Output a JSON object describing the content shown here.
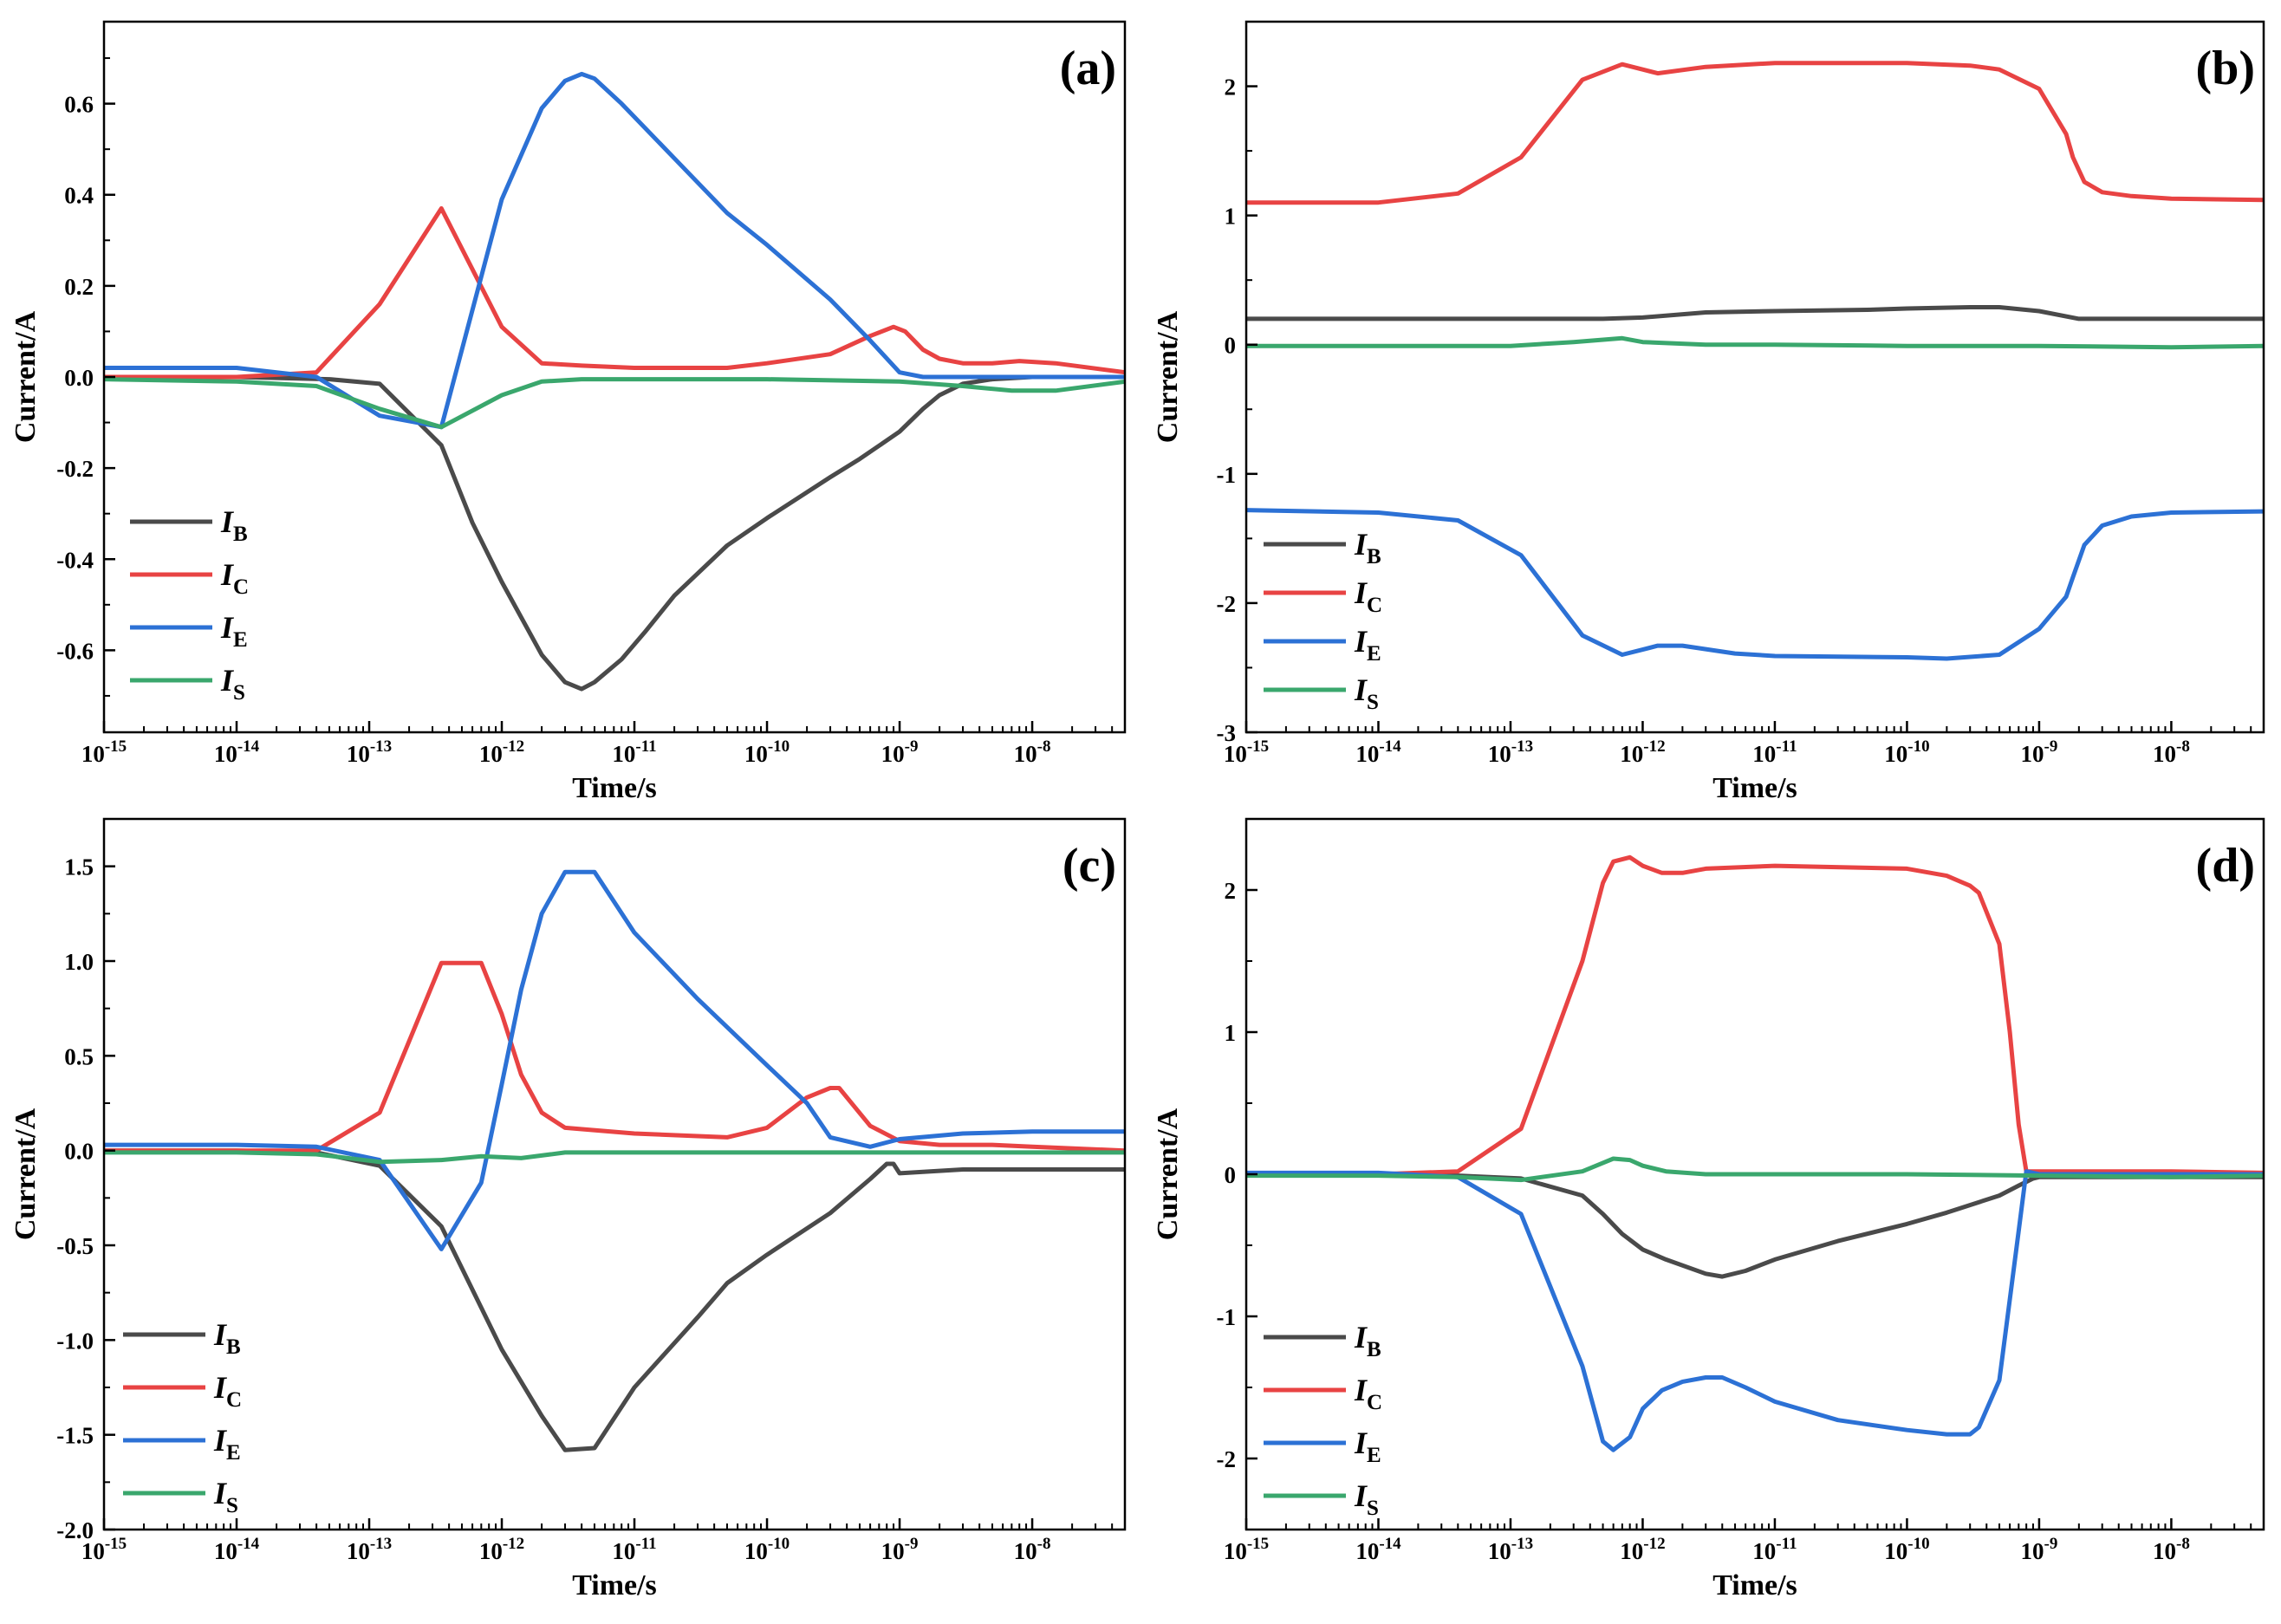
{
  "chart_data": [
    {
      "type": "line",
      "panel": "(a)",
      "xscale": "log",
      "xlabel": "Time/s",
      "ylabel": "Current/A",
      "xlim": [
        1e-15,
        5e-08
      ],
      "ylim": [
        -0.78,
        0.78
      ],
      "xticks": [
        {
          "base": "10",
          "exp": "-15"
        },
        {
          "base": "10",
          "exp": "-14"
        },
        {
          "base": "10",
          "exp": "-13"
        },
        {
          "base": "10",
          "exp": "-12"
        },
        {
          "base": "10",
          "exp": "-11"
        },
        {
          "base": "10",
          "exp": "-10"
        },
        {
          "base": "10",
          "exp": "-9"
        },
        {
          "base": "10",
          "exp": "-8"
        }
      ],
      "yticks": [
        {
          "value": 0.6,
          "label": "0.6"
        },
        {
          "value": 0.4,
          "label": "0.4"
        },
        {
          "value": 0.2,
          "label": "0.2"
        },
        {
          "value": 0.0,
          "label": "0.0"
        },
        {
          "value": -0.2,
          "label": "-0.2"
        },
        {
          "value": -0.4,
          "label": "-0.4"
        },
        {
          "value": -0.6,
          "label": "-0.6"
        }
      ],
      "legend_position": "bottom-left",
      "series": [
        {
          "name": "I",
          "sub": "B",
          "color": "#4a4a4a",
          "x": [
            1e-15,
            1e-14,
            5e-14,
            1.2e-13,
            3.5e-13,
            6e-13,
            1e-12,
            2e-12,
            3e-12,
            4e-12,
            5e-12,
            8e-12,
            1.2e-11,
            2e-11,
            5e-11,
            1e-10,
            3e-10,
            5e-10,
            1e-09,
            1.5e-09,
            2e-09,
            3e-09,
            5e-09,
            1e-08,
            5e-08
          ],
          "y": [
            0.0,
            0.0,
            -0.005,
            -0.015,
            -0.15,
            -0.32,
            -0.45,
            -0.61,
            -0.67,
            -0.685,
            -0.67,
            -0.62,
            -0.56,
            -0.48,
            -0.37,
            -0.31,
            -0.22,
            -0.18,
            -0.12,
            -0.07,
            -0.04,
            -0.015,
            -0.005,
            0.0,
            0.0
          ]
        },
        {
          "name": "I",
          "sub": "C",
          "color": "#e84343",
          "x": [
            1e-15,
            1e-14,
            4e-14,
            1.2e-13,
            3.5e-13,
            1e-12,
            2e-12,
            4e-12,
            1e-11,
            2e-11,
            5e-11,
            1e-10,
            3e-10,
            6e-10,
            9e-10,
            1.1e-09,
            1.5e-09,
            2e-09,
            3e-09,
            5e-09,
            8e-09,
            1.5e-08,
            5e-08
          ],
          "y": [
            0.0,
            0.0,
            0.01,
            0.16,
            0.37,
            0.11,
            0.03,
            0.025,
            0.02,
            0.02,
            0.02,
            0.03,
            0.05,
            0.09,
            0.11,
            0.1,
            0.06,
            0.04,
            0.03,
            0.03,
            0.035,
            0.03,
            0.01
          ]
        },
        {
          "name": "I",
          "sub": "E",
          "color": "#2c71d5",
          "x": [
            1e-15,
            1e-14,
            4e-14,
            1.2e-13,
            3.5e-13,
            1e-12,
            2e-12,
            3e-12,
            4e-12,
            5e-12,
            8e-12,
            2e-11,
            5e-11,
            1e-10,
            3e-10,
            6e-10,
            1e-09,
            1.5e-09,
            3e-09,
            1e-08,
            5e-08
          ],
          "y": [
            0.02,
            0.02,
            0.0,
            -0.085,
            -0.11,
            0.39,
            0.59,
            0.65,
            0.665,
            0.655,
            0.6,
            0.48,
            0.36,
            0.29,
            0.17,
            0.08,
            0.01,
            0.0,
            0.0,
            0.0,
            0.0
          ]
        },
        {
          "name": "I",
          "sub": "S",
          "color": "#3aa76d",
          "x": [
            1e-15,
            1e-14,
            4e-14,
            1.2e-13,
            3.5e-13,
            1e-12,
            2e-12,
            4e-12,
            1e-11,
            1e-10,
            1e-09,
            3e-09,
            7e-09,
            1.5e-08,
            5e-08
          ],
          "y": [
            -0.005,
            -0.01,
            -0.02,
            -0.07,
            -0.11,
            -0.04,
            -0.01,
            -0.005,
            -0.005,
            -0.005,
            -0.01,
            -0.02,
            -0.03,
            -0.03,
            -0.01
          ]
        }
      ]
    },
    {
      "type": "line",
      "panel": "(b)",
      "xscale": "log",
      "xlabel": "Time/s",
      "ylabel": "Current/A",
      "xlim": [
        1e-15,
        5e-08
      ],
      "ylim": [
        -3,
        2.5
      ],
      "xticks": [
        {
          "base": "10",
          "exp": "-15"
        },
        {
          "base": "10",
          "exp": "-14"
        },
        {
          "base": "10",
          "exp": "-13"
        },
        {
          "base": "10",
          "exp": "-12"
        },
        {
          "base": "10",
          "exp": "-11"
        },
        {
          "base": "10",
          "exp": "-10"
        },
        {
          "base": "10",
          "exp": "-9"
        },
        {
          "base": "10",
          "exp": "-8"
        }
      ],
      "yticks": [
        {
          "value": 2,
          "label": "2"
        },
        {
          "value": 1,
          "label": "1"
        },
        {
          "value": 0,
          "label": "0"
        },
        {
          "value": -1,
          "label": "-1"
        },
        {
          "value": -2,
          "label": "-2"
        },
        {
          "value": -3,
          "label": "-3"
        }
      ],
      "legend_position": "bottom-left",
      "series": [
        {
          "name": "I",
          "sub": "B",
          "color": "#4a4a4a",
          "x": [
            1e-15,
            1e-14,
            1e-13,
            5e-13,
            1e-12,
            3e-12,
            1e-11,
            5e-11,
            1e-10,
            3e-10,
            5e-10,
            1e-09,
            2e-09,
            1e-08,
            5e-08
          ],
          "y": [
            0.2,
            0.2,
            0.2,
            0.2,
            0.21,
            0.25,
            0.26,
            0.27,
            0.28,
            0.29,
            0.29,
            0.26,
            0.2,
            0.2,
            0.2
          ]
        },
        {
          "name": "I",
          "sub": "C",
          "color": "#e84343",
          "x": [
            1e-15,
            1e-14,
            4e-14,
            1.2e-13,
            3.5e-13,
            7e-13,
            1e-12,
            1.3e-12,
            3e-12,
            1e-11,
            1e-10,
            3e-10,
            5e-10,
            1e-09,
            1.6e-09,
            1.8e-09,
            2.2e-09,
            3e-09,
            5e-09,
            1e-08,
            5e-08
          ],
          "y": [
            1.1,
            1.1,
            1.17,
            1.45,
            2.05,
            2.17,
            2.13,
            2.1,
            2.15,
            2.18,
            2.18,
            2.16,
            2.13,
            1.98,
            1.63,
            1.45,
            1.26,
            1.18,
            1.15,
            1.13,
            1.12
          ]
        },
        {
          "name": "I",
          "sub": "E",
          "color": "#2c71d5",
          "x": [
            1e-15,
            1e-14,
            4e-14,
            1.2e-13,
            3.5e-13,
            7e-13,
            1e-12,
            1.3e-12,
            2e-12,
            5e-12,
            1e-11,
            1e-10,
            2e-10,
            5e-10,
            1e-09,
            1.6e-09,
            1.8e-09,
            2.2e-09,
            3e-09,
            5e-09,
            1e-08,
            5e-08
          ],
          "y": [
            -1.28,
            -1.3,
            -1.36,
            -1.63,
            -2.25,
            -2.4,
            -2.36,
            -2.33,
            -2.33,
            -2.39,
            -2.41,
            -2.42,
            -2.43,
            -2.4,
            -2.2,
            -1.95,
            -1.8,
            -1.55,
            -1.4,
            -1.33,
            -1.3,
            -1.29
          ]
        },
        {
          "name": "I",
          "sub": "S",
          "color": "#3aa76d",
          "x": [
            1e-15,
            1e-13,
            3e-13,
            7e-13,
            1e-12,
            3e-12,
            1e-11,
            1e-10,
            1e-09,
            1e-08,
            5e-08
          ],
          "y": [
            -0.01,
            -0.01,
            0.02,
            0.05,
            0.02,
            0.0,
            0.0,
            -0.01,
            -0.01,
            -0.02,
            -0.01
          ]
        }
      ]
    },
    {
      "type": "line",
      "panel": "(c)",
      "xscale": "log",
      "xlabel": "Time/s",
      "ylabel": "Current/A",
      "xlim": [
        1e-15,
        5e-08
      ],
      "ylim": [
        -2.0,
        1.75
      ],
      "xticks": [
        {
          "base": "10",
          "exp": "-15"
        },
        {
          "base": "10",
          "exp": "-14"
        },
        {
          "base": "10",
          "exp": "-13"
        },
        {
          "base": "10",
          "exp": "-12"
        },
        {
          "base": "10",
          "exp": "-11"
        },
        {
          "base": "10",
          "exp": "-10"
        },
        {
          "base": "10",
          "exp": "-9"
        },
        {
          "base": "10",
          "exp": "-8"
        }
      ],
      "yticks": [
        {
          "value": 1.5,
          "label": "1.5"
        },
        {
          "value": 1.0,
          "label": "1.0"
        },
        {
          "value": 0.5,
          "label": "0.5"
        },
        {
          "value": 0.0,
          "label": "0.0"
        },
        {
          "value": -0.5,
          "label": "-0.5"
        },
        {
          "value": -1.0,
          "label": "-1.0"
        },
        {
          "value": -1.5,
          "label": "-1.5"
        },
        {
          "value": -2.0,
          "label": "-2.0"
        }
      ],
      "legend_position": "bottom-left",
      "series": [
        {
          "name": "I",
          "sub": "B",
          "color": "#4a4a4a",
          "x": [
            1e-15,
            1e-14,
            4e-14,
            1.2e-13,
            3.5e-13,
            1e-12,
            2e-12,
            3e-12,
            5e-12,
            1e-11,
            3e-11,
            5e-11,
            1e-10,
            3e-10,
            6e-10,
            8e-10,
            9e-10,
            1e-09,
            3e-09,
            1e-08,
            5e-08
          ],
          "y": [
            0.0,
            0.0,
            -0.01,
            -0.08,
            -0.4,
            -1.05,
            -1.4,
            -1.58,
            -1.57,
            -1.25,
            -0.88,
            -0.7,
            -0.55,
            -0.33,
            -0.15,
            -0.07,
            -0.07,
            -0.12,
            -0.1,
            -0.1,
            -0.1
          ]
        },
        {
          "name": "I",
          "sub": "C",
          "color": "#e84343",
          "x": [
            1e-15,
            1e-14,
            4e-14,
            1.2e-13,
            3.5e-13,
            7e-13,
            1e-12,
            1.4e-12,
            2e-12,
            3e-12,
            1e-11,
            5e-11,
            1e-10,
            2e-10,
            3e-10,
            3.5e-10,
            6e-10,
            1e-09,
            2e-09,
            5e-09,
            1e-08,
            5e-08
          ],
          "y": [
            0.0,
            0.0,
            0.0,
            0.2,
            0.99,
            0.99,
            0.72,
            0.4,
            0.2,
            0.12,
            0.09,
            0.07,
            0.12,
            0.28,
            0.33,
            0.33,
            0.13,
            0.05,
            0.03,
            0.03,
            0.02,
            0.0
          ]
        },
        {
          "name": "I",
          "sub": "E",
          "color": "#2c71d5",
          "x": [
            1e-15,
            1e-14,
            4e-14,
            1.2e-13,
            3.5e-13,
            7e-13,
            1e-12,
            1.4e-12,
            2e-12,
            3e-12,
            5e-12,
            1e-11,
            3e-11,
            1e-10,
            2e-10,
            3e-10,
            6e-10,
            1e-09,
            3e-09,
            1e-08,
            5e-08
          ],
          "y": [
            0.03,
            0.03,
            0.02,
            -0.05,
            -0.52,
            -0.17,
            0.35,
            0.85,
            1.25,
            1.47,
            1.47,
            1.15,
            0.8,
            0.45,
            0.25,
            0.07,
            0.02,
            0.06,
            0.09,
            0.1,
            0.1
          ]
        },
        {
          "name": "I",
          "sub": "S",
          "color": "#3aa76d",
          "x": [
            1e-15,
            1e-14,
            4e-14,
            1.2e-13,
            3.5e-13,
            7e-13,
            1.4e-12,
            3e-12,
            1e-11,
            1e-10,
            1e-09,
            1e-08,
            5e-08
          ],
          "y": [
            -0.01,
            -0.01,
            -0.02,
            -0.06,
            -0.05,
            -0.03,
            -0.04,
            -0.01,
            -0.01,
            -0.01,
            -0.01,
            -0.01,
            -0.01
          ]
        }
      ]
    },
    {
      "type": "line",
      "panel": "(d)",
      "xscale": "log",
      "xlabel": "Time/s",
      "ylabel": "Current/A",
      "xlim": [
        1e-15,
        5e-08
      ],
      "ylim": [
        -2.5,
        2.5
      ],
      "xticks": [
        {
          "base": "10",
          "exp": "-15"
        },
        {
          "base": "10",
          "exp": "-14"
        },
        {
          "base": "10",
          "exp": "-13"
        },
        {
          "base": "10",
          "exp": "-12"
        },
        {
          "base": "10",
          "exp": "-11"
        },
        {
          "base": "10",
          "exp": "-10"
        },
        {
          "base": "10",
          "exp": "-9"
        },
        {
          "base": "10",
          "exp": "-8"
        }
      ],
      "yticks": [
        {
          "value": 2,
          "label": "2"
        },
        {
          "value": 1,
          "label": "1"
        },
        {
          "value": 0,
          "label": "0"
        },
        {
          "value": -1,
          "label": "-1"
        },
        {
          "value": -2,
          "label": "-2"
        }
      ],
      "legend_position": "bottom-left",
      "series": [
        {
          "name": "I",
          "sub": "B",
          "color": "#4a4a4a",
          "x": [
            1e-15,
            1e-14,
            4e-14,
            1.2e-13,
            3.5e-13,
            5e-13,
            7e-13,
            1e-12,
            1.5e-12,
            3e-12,
            4e-12,
            6e-12,
            1e-11,
            3e-11,
            1e-10,
            2e-10,
            5e-10,
            7e-10,
            9e-10,
            1e-09,
            5e-08
          ],
          "y": [
            0.0,
            0.0,
            -0.01,
            -0.03,
            -0.15,
            -0.28,
            -0.42,
            -0.53,
            -0.6,
            -0.7,
            -0.72,
            -0.68,
            -0.6,
            -0.47,
            -0.35,
            -0.27,
            -0.15,
            -0.08,
            -0.03,
            -0.02,
            -0.02
          ]
        },
        {
          "name": "I",
          "sub": "C",
          "color": "#e84343",
          "x": [
            1e-15,
            1e-14,
            4e-14,
            1.2e-13,
            3.5e-13,
            5e-13,
            6e-13,
            8e-13,
            1e-12,
            1.4e-12,
            2e-12,
            3e-12,
            1e-11,
            1e-10,
            2e-10,
            3e-10,
            3.5e-10,
            5e-10,
            6e-10,
            7e-10,
            8e-10,
            1e-08,
            5e-08
          ],
          "y": [
            0.0,
            0.0,
            0.02,
            0.32,
            1.5,
            2.05,
            2.2,
            2.23,
            2.17,
            2.12,
            2.12,
            2.15,
            2.17,
            2.15,
            2.1,
            2.03,
            1.98,
            1.62,
            1.0,
            0.35,
            0.02,
            0.02,
            0.01
          ]
        },
        {
          "name": "I",
          "sub": "E",
          "color": "#2c71d5",
          "x": [
            1e-15,
            1e-14,
            4e-14,
            1.2e-13,
            3.5e-13,
            5e-13,
            6e-13,
            8e-13,
            1e-12,
            1.4e-12,
            2e-12,
            3e-12,
            4e-12,
            6e-12,
            1e-11,
            3e-11,
            1e-10,
            2e-10,
            3e-10,
            3.5e-10,
            5e-10,
            7e-10,
            8e-10,
            1e-09,
            1e-08,
            5e-08
          ],
          "y": [
            0.01,
            0.01,
            -0.02,
            -0.28,
            -1.35,
            -1.88,
            -1.94,
            -1.85,
            -1.65,
            -1.52,
            -1.46,
            -1.43,
            -1.43,
            -1.5,
            -1.6,
            -1.73,
            -1.8,
            -1.83,
            -1.83,
            -1.78,
            -1.45,
            -0.4,
            0.02,
            0.0,
            0.0,
            0.0
          ]
        },
        {
          "name": "I",
          "sub": "S",
          "color": "#3aa76d",
          "x": [
            1e-15,
            1e-14,
            4e-14,
            1.2e-13,
            3.5e-13,
            5e-13,
            6e-13,
            8e-13,
            1e-12,
            1.5e-12,
            3e-12,
            1e-11,
            1e-10,
            1e-09,
            1e-08,
            5e-08
          ],
          "y": [
            -0.01,
            -0.01,
            -0.02,
            -0.04,
            0.02,
            0.08,
            0.11,
            0.1,
            0.06,
            0.02,
            0.0,
            0.0,
            0.0,
            -0.01,
            -0.02,
            -0.01
          ]
        }
      ]
    }
  ]
}
